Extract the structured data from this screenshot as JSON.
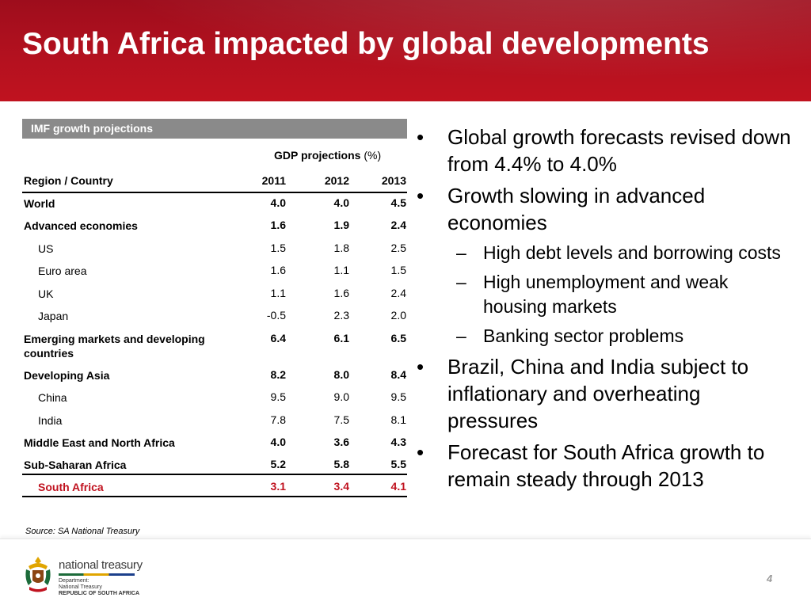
{
  "header": {
    "title": "South Africa impacted by global developments"
  },
  "table": {
    "title": "IMF growth projections",
    "group_header": "GDP projections",
    "group_unit": "(%)",
    "columns": [
      "Region / Country",
      "2011",
      "2012",
      "2013"
    ],
    "rows": [
      {
        "label": "World",
        "v2011": "4.0",
        "v2012": "4.0",
        "v2013": "4.5"
      },
      {
        "label": "Advanced economies",
        "v2011": "1.6",
        "v2012": "1.9",
        "v2013": "2.4"
      },
      {
        "label": "US",
        "v2011": "1.5",
        "v2012": "1.8",
        "v2013": "2.5"
      },
      {
        "label": "Euro area",
        "v2011": "1.6",
        "v2012": "1.1",
        "v2013": "1.5"
      },
      {
        "label": "UK",
        "v2011": "1.1",
        "v2012": "1.6",
        "v2013": "2.4"
      },
      {
        "label": "Japan",
        "v2011": "-0.5",
        "v2012": "2.3",
        "v2013": "2.0"
      },
      {
        "label": "Emerging markets and developing countries",
        "v2011": "6.4",
        "v2012": "6.1",
        "v2013": "6.5"
      },
      {
        "label": "Developing Asia",
        "v2011": "8.2",
        "v2012": "8.0",
        "v2013": "8.4"
      },
      {
        "label": "China",
        "v2011": "9.5",
        "v2012": "9.0",
        "v2013": "9.5"
      },
      {
        "label": "India",
        "v2011": "7.8",
        "v2012": "7.5",
        "v2013": "8.1"
      },
      {
        "label": "Middle East and North Africa",
        "v2011": "4.0",
        "v2012": "3.6",
        "v2013": "4.3"
      },
      {
        "label": "Sub-Saharan Africa",
        "v2011": "5.2",
        "v2012": "5.8",
        "v2013": "5.5"
      },
      {
        "label": "South Africa",
        "v2011": "3.1",
        "v2012": "3.4",
        "v2013": "4.1"
      }
    ]
  },
  "source": "Source: SA National Treasury",
  "bullets": {
    "b1": "Global growth forecasts revised down from 4.4% to 4.0%",
    "b2": "Growth slowing in advanced economies",
    "b2_sub1": "High debt levels and borrowing costs",
    "b2_sub2": "High unemployment and weak housing markets",
    "b2_sub3": "Banking sector problems",
    "b3": "Brazil, China and India subject to inflationary and overheating pressures",
    "b4": "Forecast for South Africa growth to remain steady through 2013",
    "bullet_glyph": "•",
    "dash_glyph": "–"
  },
  "footer": {
    "logo_name": "national treasury",
    "logo_line1": "Department:",
    "logo_line2": "National Treasury",
    "logo_line3": "REPUBLIC OF SOUTH AFRICA",
    "page_number": "4"
  },
  "colors": {
    "header_red": "#b3111f",
    "highlight_red": "#c0121f",
    "table_title_gray": "#8a8a8a"
  }
}
